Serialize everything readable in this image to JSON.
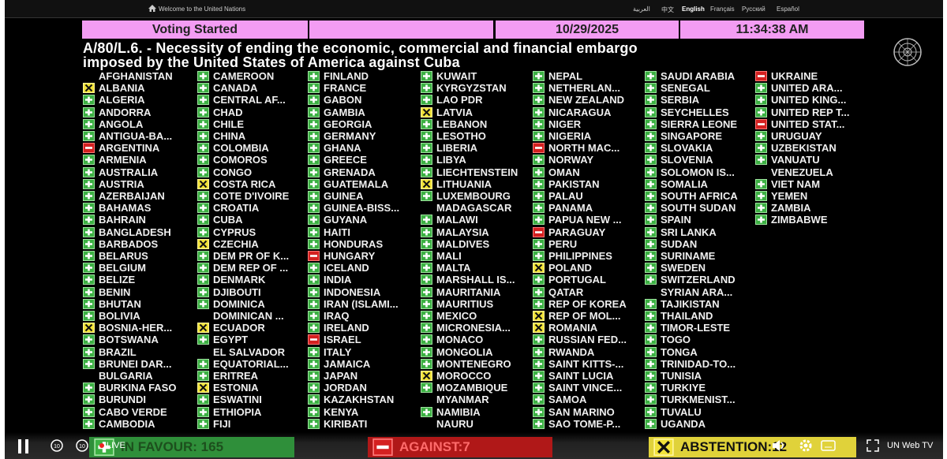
{
  "top_bar": {
    "welcome": "Welcome to the United Nations",
    "languages": [
      "العربية",
      "中文",
      "English",
      "Français",
      "Русский",
      "Español"
    ]
  },
  "header": {
    "status": "Voting Started",
    "date": "10/29/2025",
    "time": "11:34:38 AM"
  },
  "title_lines": [
    "A/80/L.6. - Necessity of ending the economic, commercial and financial embargo",
    "imposed by the United States of America against Cuba"
  ],
  "columns": [
    [
      [
        "AFGHANISTAN",
        null
      ],
      [
        "ALBANIA",
        "A"
      ],
      [
        "ALGERIA",
        "Y"
      ],
      [
        "ANDORRA",
        "Y"
      ],
      [
        "ANGOLA",
        "Y"
      ],
      [
        "ANTIGUA-BA...",
        "Y"
      ],
      [
        "ARGENTINA",
        "N"
      ],
      [
        "ARMENIA",
        "Y"
      ],
      [
        "AUSTRALIA",
        "Y"
      ],
      [
        "AUSTRIA",
        "Y"
      ],
      [
        "AZERBAIJAN",
        "Y"
      ],
      [
        "BAHAMAS",
        "Y"
      ],
      [
        "BAHRAIN",
        "Y"
      ],
      [
        "BANGLADESH",
        "Y"
      ],
      [
        "BARBADOS",
        "Y"
      ],
      [
        "BELARUS",
        "Y"
      ],
      [
        "BELGIUM",
        "Y"
      ],
      [
        "BELIZE",
        "Y"
      ],
      [
        "BENIN",
        "Y"
      ],
      [
        "BHUTAN",
        "Y"
      ],
      [
        "BOLIVIA",
        "Y"
      ],
      [
        "BOSNIA-HER...",
        "A"
      ],
      [
        "BOTSWANA",
        "Y"
      ],
      [
        "BRAZIL",
        "Y"
      ],
      [
        "BRUNEI DAR...",
        "Y"
      ],
      [
        "BULGARIA",
        null
      ],
      [
        "BURKINA FASO",
        "Y"
      ],
      [
        "BURUNDI",
        "Y"
      ],
      [
        "CABO VERDE",
        "Y"
      ],
      [
        "CAMBODIA",
        "Y"
      ]
    ],
    [
      [
        "CAMEROON",
        "Y"
      ],
      [
        "CANADA",
        "Y"
      ],
      [
        "CENTRAL AF...",
        "Y"
      ],
      [
        "CHAD",
        "Y"
      ],
      [
        "CHILE",
        "Y"
      ],
      [
        "CHINA",
        "Y"
      ],
      [
        "COLOMBIA",
        "Y"
      ],
      [
        "COMOROS",
        "Y"
      ],
      [
        "CONGO",
        "Y"
      ],
      [
        "COSTA RICA",
        "A"
      ],
      [
        "COTE D'IVOIRE",
        "Y"
      ],
      [
        "CROATIA",
        "Y"
      ],
      [
        "CUBA",
        "Y"
      ],
      [
        "CYPRUS",
        "Y"
      ],
      [
        "CZECHIA",
        "A"
      ],
      [
        "DEM PR OF K...",
        "Y"
      ],
      [
        "DEM REP OF ...",
        "Y"
      ],
      [
        "DENMARK",
        "Y"
      ],
      [
        "DJIBOUTI",
        "Y"
      ],
      [
        "DOMINICA",
        "Y"
      ],
      [
        "DOMINICAN ...",
        null
      ],
      [
        "ECUADOR",
        "A"
      ],
      [
        "EGYPT",
        "Y"
      ],
      [
        "EL SALVADOR",
        null
      ],
      [
        "EQUATORIAL...",
        "Y"
      ],
      [
        "ERITREA",
        "Y"
      ],
      [
        "ESTONIA",
        "A"
      ],
      [
        "ESWATINI",
        "Y"
      ],
      [
        "ETHIOPIA",
        "Y"
      ],
      [
        "FIJI",
        "Y"
      ]
    ],
    [
      [
        "FINLAND",
        "Y"
      ],
      [
        "FRANCE",
        "Y"
      ],
      [
        "GABON",
        "Y"
      ],
      [
        "GAMBIA",
        "Y"
      ],
      [
        "GEORGIA",
        "Y"
      ],
      [
        "GERMANY",
        "Y"
      ],
      [
        "GHANA",
        "Y"
      ],
      [
        "GREECE",
        "Y"
      ],
      [
        "GRENADA",
        "Y"
      ],
      [
        "GUATEMALA",
        "Y"
      ],
      [
        "GUINEA",
        "Y"
      ],
      [
        "GUINEA-BISS...",
        "Y"
      ],
      [
        "GUYANA",
        "Y"
      ],
      [
        "HAITI",
        "Y"
      ],
      [
        "HONDURAS",
        "Y"
      ],
      [
        "HUNGARY",
        "N"
      ],
      [
        "ICELAND",
        "Y"
      ],
      [
        "INDIA",
        "Y"
      ],
      [
        "INDONESIA",
        "Y"
      ],
      [
        "IRAN (ISLAMI...",
        "Y"
      ],
      [
        "IRAQ",
        "Y"
      ],
      [
        "IRELAND",
        "Y"
      ],
      [
        "ISRAEL",
        "N"
      ],
      [
        "ITALY",
        "Y"
      ],
      [
        "JAMAICA",
        "Y"
      ],
      [
        "JAPAN",
        "Y"
      ],
      [
        "JORDAN",
        "Y"
      ],
      [
        "KAZAKHSTAN",
        "Y"
      ],
      [
        "KENYA",
        "Y"
      ],
      [
        "KIRIBATI",
        "Y"
      ]
    ],
    [
      [
        "KUWAIT",
        "Y"
      ],
      [
        "KYRGYZSTAN",
        "Y"
      ],
      [
        "LAO PDR",
        "Y"
      ],
      [
        "LATVIA",
        "A"
      ],
      [
        "LEBANON",
        "Y"
      ],
      [
        "LESOTHO",
        "Y"
      ],
      [
        "LIBERIA",
        "Y"
      ],
      [
        "LIBYA",
        "Y"
      ],
      [
        "LIECHTENSTEIN",
        "Y"
      ],
      [
        "LITHUANIA",
        "A"
      ],
      [
        "LUXEMBOURG",
        "Y"
      ],
      [
        "MADAGASCAR",
        null
      ],
      [
        "MALAWI",
        "Y"
      ],
      [
        "MALAYSIA",
        "Y"
      ],
      [
        "MALDIVES",
        "Y"
      ],
      [
        "MALI",
        "Y"
      ],
      [
        "MALTA",
        "Y"
      ],
      [
        "MARSHALL IS...",
        "Y"
      ],
      [
        "MAURITANIA",
        "Y"
      ],
      [
        "MAURITIUS",
        "Y"
      ],
      [
        "MEXICO",
        "Y"
      ],
      [
        "MICRONESIA...",
        "Y"
      ],
      [
        "MONACO",
        "Y"
      ],
      [
        "MONGOLIA",
        "Y"
      ],
      [
        "MONTENEGRO",
        "Y"
      ],
      [
        "MOROCCO",
        "A"
      ],
      [
        "MOZAMBIQUE",
        "Y"
      ],
      [
        "MYANMAR",
        null
      ],
      [
        "NAMIBIA",
        "Y"
      ],
      [
        "NAURU",
        null
      ]
    ],
    [
      [
        "NEPAL",
        "Y"
      ],
      [
        "NETHERLAN...",
        "Y"
      ],
      [
        "NEW ZEALAND",
        "Y"
      ],
      [
        "NICARAGUA",
        "Y"
      ],
      [
        "NIGER",
        "Y"
      ],
      [
        "NIGERIA",
        "Y"
      ],
      [
        "NORTH MAC...",
        "N"
      ],
      [
        "NORWAY",
        "Y"
      ],
      [
        "OMAN",
        "Y"
      ],
      [
        "PAKISTAN",
        "Y"
      ],
      [
        "PALAU",
        "Y"
      ],
      [
        "PANAMA",
        "Y"
      ],
      [
        "PAPUA NEW ...",
        "Y"
      ],
      [
        "PARAGUAY",
        "N"
      ],
      [
        "PERU",
        "Y"
      ],
      [
        "PHILIPPINES",
        "Y"
      ],
      [
        "POLAND",
        "A"
      ],
      [
        "PORTUGAL",
        "Y"
      ],
      [
        "QATAR",
        "Y"
      ],
      [
        "REP OF KOREA",
        "Y"
      ],
      [
        "REP OF MOL...",
        "A"
      ],
      [
        "ROMANIA",
        "A"
      ],
      [
        "RUSSIAN FED...",
        "Y"
      ],
      [
        "RWANDA",
        "Y"
      ],
      [
        "SAINT KITTS-...",
        "Y"
      ],
      [
        "SAINT LUCIA",
        "Y"
      ],
      [
        "SAINT VINCE...",
        "Y"
      ],
      [
        "SAMOA",
        "Y"
      ],
      [
        "SAN MARINO",
        "Y"
      ],
      [
        "SAO TOME-P...",
        "Y"
      ]
    ],
    [
      [
        "SAUDI ARABIA",
        "Y"
      ],
      [
        "SENEGAL",
        "Y"
      ],
      [
        "SERBIA",
        "Y"
      ],
      [
        "SEYCHELLES",
        "Y"
      ],
      [
        "SIERRA LEONE",
        "Y"
      ],
      [
        "SINGAPORE",
        "Y"
      ],
      [
        "SLOVAKIA",
        "Y"
      ],
      [
        "SLOVENIA",
        "Y"
      ],
      [
        "SOLOMON IS...",
        "Y"
      ],
      [
        "SOMALIA",
        "Y"
      ],
      [
        "SOUTH AFRICA",
        "Y"
      ],
      [
        "SOUTH SUDAN",
        "Y"
      ],
      [
        "SPAIN",
        "Y"
      ],
      [
        "SRI LANKA",
        "Y"
      ],
      [
        "SUDAN",
        "Y"
      ],
      [
        "SURINAME",
        "Y"
      ],
      [
        "SWEDEN",
        "Y"
      ],
      [
        "SWITZERLAND",
        "Y"
      ],
      [
        "SYRIAN ARA...",
        null
      ],
      [
        "TAJIKISTAN",
        "Y"
      ],
      [
        "THAILAND",
        "Y"
      ],
      [
        "TIMOR-LESTE",
        "Y"
      ],
      [
        "TOGO",
        "Y"
      ],
      [
        "TONGA",
        "Y"
      ],
      [
        "TRINIDAD-TO...",
        "Y"
      ],
      [
        "TUNISIA",
        "Y"
      ],
      [
        "TURKIYE",
        "Y"
      ],
      [
        "TURKMENIST...",
        "Y"
      ],
      [
        "TUVALU",
        "Y"
      ],
      [
        "UGANDA",
        "Y"
      ]
    ],
    [
      [
        "UKRAINE",
        "N"
      ],
      [
        "UNITED ARA...",
        "Y"
      ],
      [
        "UNITED KING...",
        "Y"
      ],
      [
        "UNITED REP T...",
        "Y"
      ],
      [
        "UNITED STAT...",
        "N"
      ],
      [
        "URUGUAY",
        "Y"
      ],
      [
        "UZBEKISTAN",
        "Y"
      ],
      [
        "VANUATU",
        "Y"
      ],
      [
        "VENEZUELA",
        null
      ],
      [
        "VIET NAM",
        "Y"
      ],
      [
        "YEMEN",
        "Y"
      ],
      [
        "ZAMBIA",
        "Y"
      ],
      [
        "ZIMBABWE",
        "Y"
      ]
    ]
  ],
  "tally": {
    "in_favour": "IN FAVOUR: 165",
    "against": "AGAINST:7",
    "abstention": "ABSTENTION:12"
  },
  "player": {
    "live": "LIVE",
    "brand": "UN Web TV"
  }
}
